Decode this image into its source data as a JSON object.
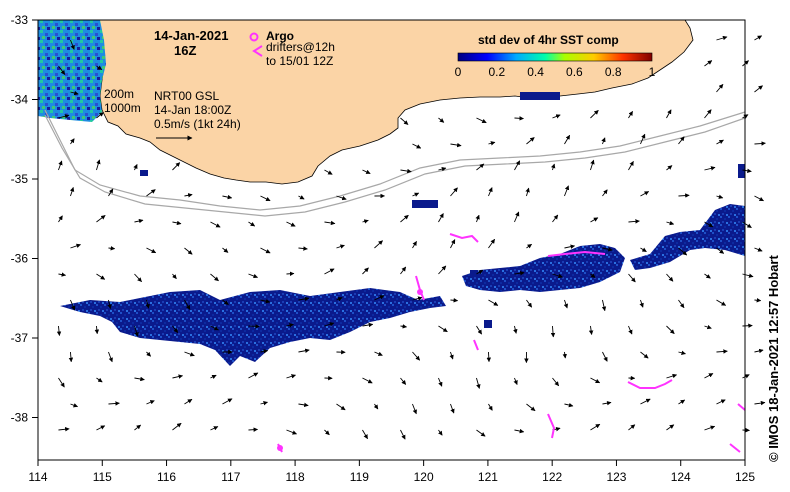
{
  "title": {
    "date": "14-Jan-2021",
    "hour": "16Z"
  },
  "argo": {
    "label": "Argo",
    "drifters_label": "drifters@12h",
    "drifters_to": "to 15/01 12Z"
  },
  "isobaths": {
    "a": "200m",
    "b": "1000m"
  },
  "currents": {
    "product": "NRT00 GSL",
    "time": "14-Jan 18:00Z",
    "scale": "0.5m/s (1kt 24h)"
  },
  "colorbar": {
    "title": "std dev of 4hr SST comp",
    "ticks": [
      "0",
      "0.2",
      "0.4",
      "0.6",
      "0.8",
      "1"
    ]
  },
  "axes": {
    "x_ticks": [
      "114",
      "115",
      "116",
      "117",
      "118",
      "119",
      "120",
      "121",
      "122",
      "123",
      "124",
      "125"
    ],
    "y_ticks": [
      "-33",
      "-34",
      "-35",
      "-36",
      "-37",
      "-38"
    ]
  },
  "credit": "© IMOS 18-Jan-2021 12:57 Hobart",
  "colors": {
    "land": "#fbd4a6",
    "sst_dark": "#0a1a8c",
    "sst_mid": "#1e64d2",
    "argo": "#ff33ff",
    "isobath": "#a8a8a8"
  }
}
